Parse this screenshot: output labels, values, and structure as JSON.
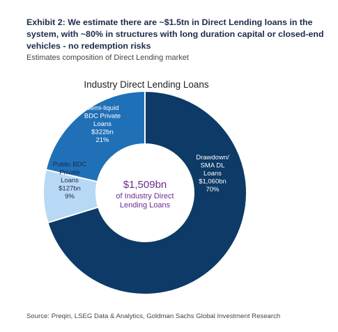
{
  "header": {
    "title": "Exhibit 2: We estimate there are ~$1.5tn in Direct Lending loans in the system, with ~80% in structures with long duration capital or closed-end vehicles - no redemption risks",
    "subtitle": "Estimates composition of Direct Lending market"
  },
  "footer": {
    "source": "Source: Preqin, LSEG Data & Analytics, Goldman Sachs Global Investment Research"
  },
  "chart_data": {
    "type": "pie",
    "title": "Industry Direct Lending Loans",
    "center_label": {
      "value": "$1,509bn",
      "lines": [
        "of Industry Direct",
        "Lending Loans"
      ]
    },
    "series": [
      {
        "values": [
          1060,
          127,
          322
        ],
        "percents": [
          70,
          9,
          21
        ]
      }
    ],
    "categories": [
      "Drawdown/SMA DL Loans",
      "Public BDC Private Loans",
      "Semi-liquid BDC Private Loans"
    ],
    "colors": [
      "#0d3a66",
      "#b8d9f5",
      "#2070b8"
    ],
    "slice_labels": [
      [
        "Drawdown/",
        "SMA DL",
        "Loans",
        "$1,060bn",
        "70%"
      ],
      [
        "Public BDC",
        "Private",
        "Loans",
        "$127bn",
        "9%"
      ],
      [
        "Semi-liquid",
        "BDC Private",
        "Loans",
        "$322bn",
        "21%"
      ]
    ],
    "legend": "none"
  }
}
